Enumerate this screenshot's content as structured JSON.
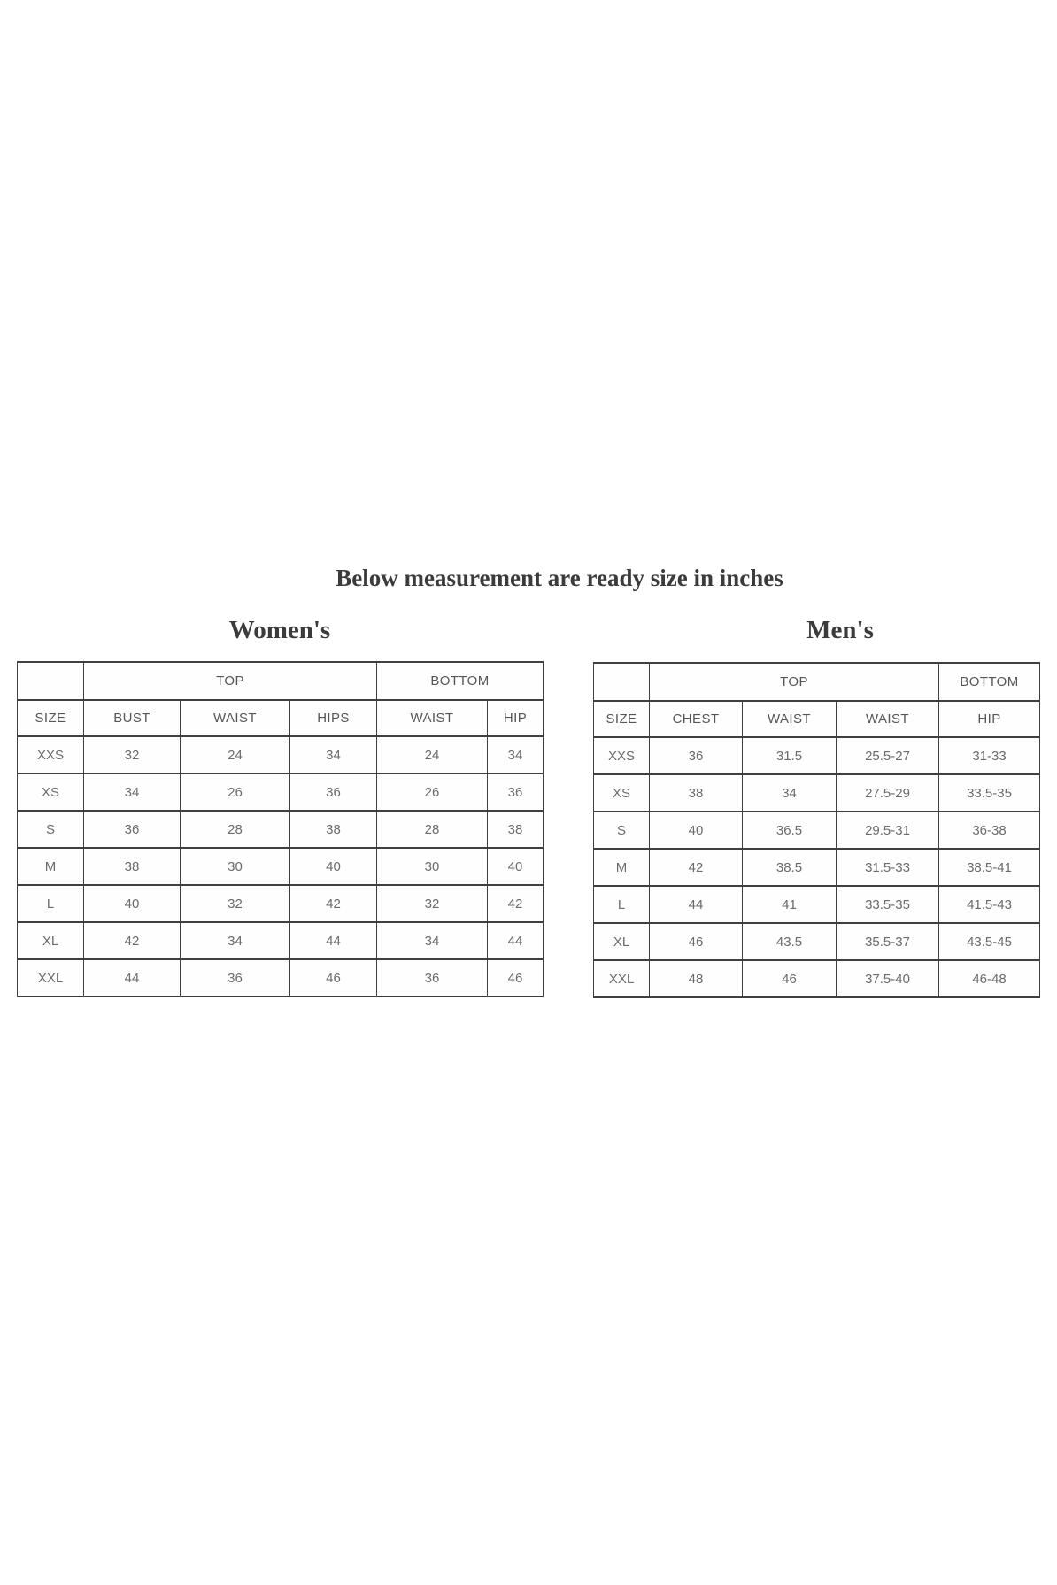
{
  "page": {
    "title": "Below measurement are ready size in inches"
  },
  "colors": {
    "background": "#ffffff",
    "heading_text": "#3b3b3b",
    "table_border": "#3f3f3f",
    "header_text": "#565656",
    "cell_text": "#6b6b6b"
  },
  "women": {
    "heading": "Women's",
    "group_headers": {
      "top": "TOP",
      "bottom": "BOTTOM"
    },
    "columns": [
      "SIZE",
      "BUST",
      "WAIST",
      "HIPS",
      "WAIST",
      "HIP"
    ],
    "rows": [
      [
        "XXS",
        "32",
        "24",
        "34",
        "24",
        "34"
      ],
      [
        "XS",
        "34",
        "26",
        "36",
        "26",
        "36"
      ],
      [
        "S",
        "36",
        "28",
        "38",
        "28",
        "38"
      ],
      [
        "M",
        "38",
        "30",
        "40",
        "30",
        "40"
      ],
      [
        "L",
        "40",
        "32",
        "42",
        "32",
        "42"
      ],
      [
        "XL",
        "42",
        "34",
        "44",
        "34",
        "44"
      ],
      [
        "XXL",
        "44",
        "36",
        "46",
        "36",
        "46"
      ]
    ]
  },
  "men": {
    "heading": "Men's",
    "group_headers": {
      "top": "TOP",
      "bottom": "BOTTOM"
    },
    "columns": [
      "SIZE",
      "CHEST",
      "WAIST",
      "WAIST",
      "HIP"
    ],
    "rows": [
      [
        "XXS",
        "36",
        "31.5",
        "25.5-27",
        "31-33"
      ],
      [
        "XS",
        "38",
        "34",
        "27.5-29",
        "33.5-35"
      ],
      [
        "S",
        "40",
        "36.5",
        "29.5-31",
        "36-38"
      ],
      [
        "M",
        "42",
        "38.5",
        "31.5-33",
        "38.5-41"
      ],
      [
        "L",
        "44",
        "41",
        "33.5-35",
        "41.5-43"
      ],
      [
        "XL",
        "46",
        "43.5",
        "35.5-37",
        "43.5-45"
      ],
      [
        "XXL",
        "48",
        "46",
        "37.5-40",
        "46-48"
      ]
    ]
  }
}
